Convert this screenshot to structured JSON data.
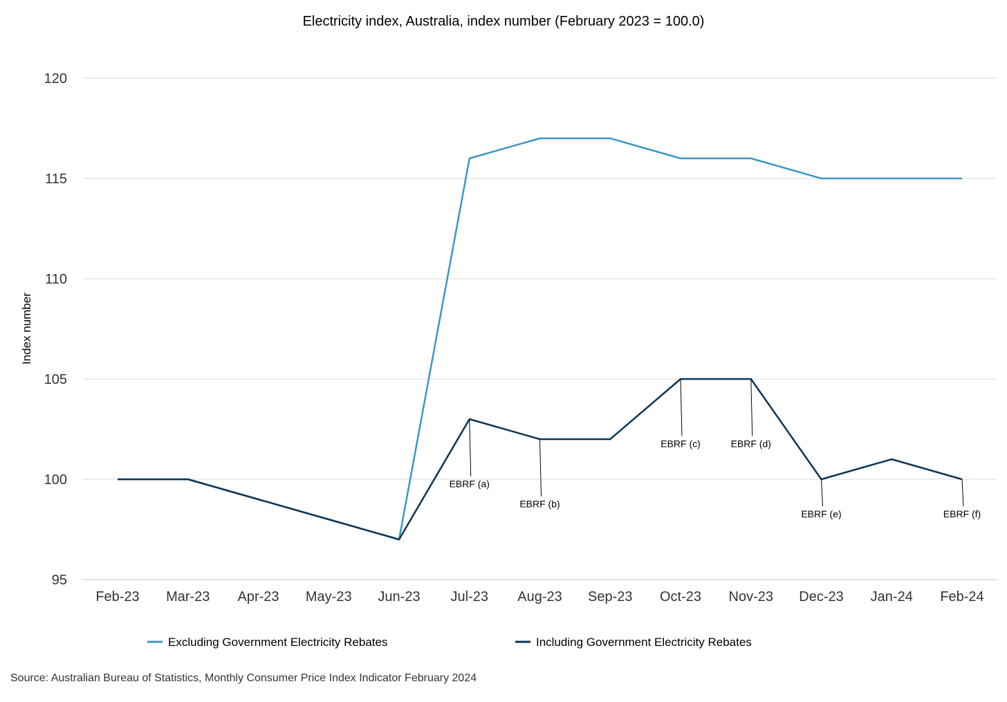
{
  "chart_data": {
    "type": "line",
    "title": "Electricity index, Australia, index number (February 2023 = 100.0)",
    "ylabel": "Index number",
    "xlabel": "",
    "ylim": [
      95,
      120
    ],
    "yticks": [
      95,
      100,
      105,
      110,
      115,
      120
    ],
    "grid": true,
    "legend_position": "bottom",
    "categories": [
      "Feb-23",
      "Mar-23",
      "Apr-23",
      "May-23",
      "Jun-23",
      "Jul-23",
      "Aug-23",
      "Sep-23",
      "Oct-23",
      "Nov-23",
      "Dec-23",
      "Jan-24",
      "Feb-24"
    ],
    "series": [
      {
        "name": "Excluding Government Electricity Rebates",
        "color": "#3a96c9",
        "values": [
          100,
          100,
          99,
          98,
          97,
          116,
          117,
          117,
          116,
          116,
          115,
          115,
          115
        ]
      },
      {
        "name": "Including Government Electricity Rebates",
        "color": "#0c3556",
        "values": [
          100,
          100,
          99,
          98,
          97,
          103,
          102,
          102,
          105,
          105,
          100,
          101,
          100
        ]
      }
    ],
    "annotations": [
      {
        "label": "EBRF (a)",
        "category": "Jul-23",
        "y": 103,
        "label_y": 99.6
      },
      {
        "label": "EBRF (b)",
        "category": "Aug-23",
        "y": 102,
        "label_y": 98.6
      },
      {
        "label": "EBRF (c)",
        "category": "Oct-23",
        "y": 105,
        "label_y": 101.6
      },
      {
        "label": "EBRF (d)",
        "category": "Nov-23",
        "y": 105,
        "label_y": 101.6
      },
      {
        "label": "EBRF (e)",
        "category": "Dec-23",
        "y": 100,
        "label_y": 98.1
      },
      {
        "label": "EBRF (f)",
        "category": "Feb-24",
        "y": 100,
        "label_y": 98.1
      }
    ],
    "source": "Source: Australian Bureau of Statistics, Monthly Consumer Price Index Indicator February 2024"
  }
}
